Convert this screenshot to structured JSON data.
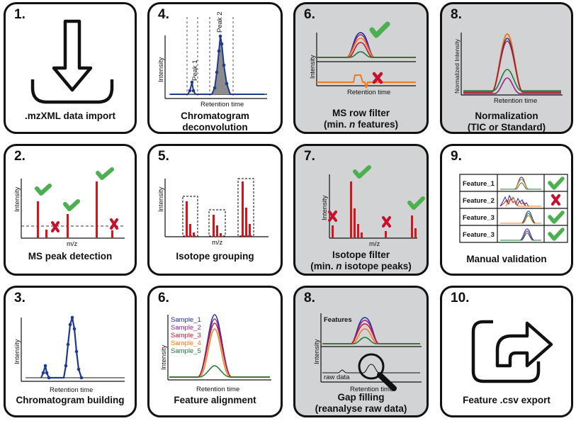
{
  "panels": {
    "p1": {
      "number": "1.",
      "caption": ".mzXML data import"
    },
    "p4": {
      "number": "4.",
      "caption_line1": "Chromatogram",
      "caption_line2": "deconvolution",
      "ylabel": "Intensity",
      "xlabel": "Retention time",
      "peak1": "Peak 1",
      "peak2": "Peak 2"
    },
    "p6a": {
      "number": "6.",
      "caption_line1": "MS row filter",
      "caption_line2_pre": "(min. ",
      "caption_line2_n": "n",
      "caption_line2_post": " features)",
      "ylabel": "Intensity",
      "xlabel": "Retention time"
    },
    "p8a": {
      "number": "8.",
      "caption_line1": "Normalization",
      "caption_line2": "(TIC or Standard)",
      "ylabel": "Normalized Intensity",
      "xlabel": "Retention time"
    },
    "p2": {
      "number": "2.",
      "caption": "MS peak detection",
      "ylabel": "Intensity",
      "xlabel": "m/z"
    },
    "p5": {
      "number": "5.",
      "caption": "Isotope grouping",
      "ylabel": "Intensity",
      "xlabel": "m/z"
    },
    "p7": {
      "number": "7.",
      "caption_line1": "Isotope filter",
      "caption_line2_pre": "(min. ",
      "caption_line2_n": "n",
      "caption_line2_post": " isotope peaks)",
      "ylabel": "Intensity",
      "xlabel": "m/z"
    },
    "p9": {
      "number": "9.",
      "caption": "Manual validation",
      "features": [
        "Feature_1",
        "Feature_2",
        "Feature_3",
        "Feature_3"
      ]
    },
    "p3": {
      "number": "3.",
      "caption": "Chromatogram building",
      "ylabel": "Intensity",
      "xlabel": "Retention time"
    },
    "p6b": {
      "number": "6.",
      "caption": "Feature alignment",
      "ylabel": "Intensity",
      "xlabel": "Retention time",
      "samples": [
        "Sample_1",
        "Sample_2",
        "Sample_3",
        "Sample_4",
        "Sample_5"
      ]
    },
    "p8b": {
      "number": "8.",
      "caption_line1": "Gap filling",
      "caption_line2": "(reanalyse raw data)",
      "ylabel": "Intensity",
      "xlabel": "Retention time",
      "features_label": "Features",
      "raw_label": "raw data"
    },
    "p10": {
      "number": "10.",
      "caption": "Feature .csv export"
    }
  },
  "colors": {
    "check": "#4caf50",
    "cross": "#c8102e",
    "peak_red": "#d7141a",
    "chrom_blue": "#1f3a8a",
    "sample_1": "#1c2f9b",
    "sample_2": "#a01c8c",
    "sample_3": "#c01c2c",
    "sample_4": "#f07a1a",
    "sample_5": "#1e7a32",
    "panel_gray": "#d2d3d5"
  },
  "icons": [
    "download-arrow-icon",
    "export-arrow-icon",
    "check-icon",
    "cross-icon",
    "magnifier-icon"
  ]
}
